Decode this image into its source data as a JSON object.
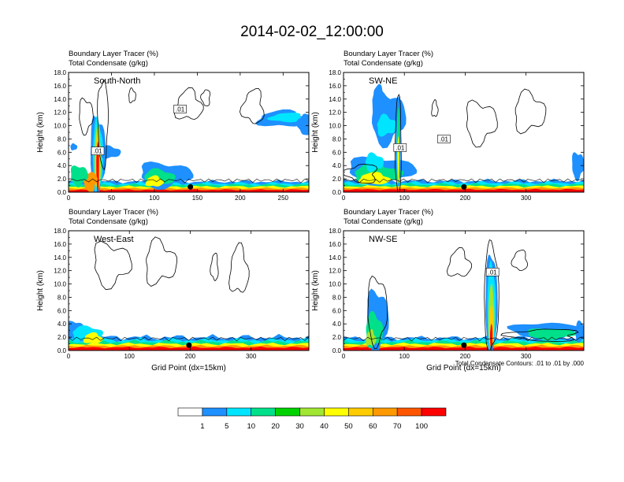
{
  "title": "2014-02-02_12:00:00",
  "colors": {
    "levels": [
      "#ffffff",
      "#1e90ff",
      "#00e5ff",
      "#00e08a",
      "#00d200",
      "#a0e632",
      "#ffff00",
      "#ffcc00",
      "#ff9900",
      "#ff5500",
      "#ff0000"
    ],
    "contour": "#000000"
  },
  "colorbar": {
    "labels": [
      "1",
      "5",
      "10",
      "20",
      "30",
      "40",
      "50",
      "60",
      "70",
      "100"
    ]
  },
  "contour_note": "Total Condensate Contours: .01 to .01 by .000",
  "chart_data": [
    {
      "type": "heatmap",
      "region": "South-North",
      "title_line1": "Boundary Layer Tracer    (%)",
      "title_line2": "Total Condensate    (g/kg)",
      "ylabel": "Height (km)",
      "xlabel": "",
      "xlim": [
        0,
        280
      ],
      "ylim": [
        0,
        18
      ],
      "x_ticks": [
        "0",
        "50",
        "100",
        "150",
        "200",
        "250"
      ],
      "y_ticks": [
        "0.0",
        "2.0",
        "4.0",
        "6.0",
        "8.0",
        "10.0",
        "12.0",
        "14.0",
        "16.0",
        "18.0"
      ],
      "contour_labels": [
        ".01",
        ".01"
      ],
      "surface_marker_x": 142,
      "tracer_percent_at_surface": 100
    },
    {
      "type": "heatmap",
      "region": "SW-NE",
      "title_line1": "Boundary Layer Tracer    (%)",
      "title_line2": "Total Condensate    (g/kg)",
      "ylabel": "Height (km)",
      "xlabel": "",
      "xlim": [
        0,
        395
      ],
      "ylim": [
        0,
        18
      ],
      "x_ticks": [
        "0",
        "100",
        "200",
        "300"
      ],
      "y_ticks": [
        "0.0",
        "2.0",
        "4.0",
        "6.0",
        "8.0",
        "10.0",
        "12.0",
        "14.0",
        "16.0",
        "18.0"
      ],
      "contour_labels": [
        ".01",
        ".01"
      ],
      "surface_marker_x": 198,
      "tracer_percent_at_surface": 100
    },
    {
      "type": "heatmap",
      "region": "West-East",
      "title_line1": "Boundary Layer Tracer    (%)",
      "title_line2": "Total Condensate    (g/kg)",
      "ylabel": "Height (km)",
      "xlabel": "Grid Point (dx=15km)",
      "xlim": [
        0,
        395
      ],
      "ylim": [
        0,
        18
      ],
      "x_ticks": [
        "0",
        "100",
        "200",
        "300"
      ],
      "y_ticks": [
        "0.0",
        "2.0",
        "4.0",
        "6.0",
        "8.0",
        "10.0",
        "12.0",
        "14.0",
        "16.0",
        "18.0"
      ],
      "contour_labels": [],
      "surface_marker_x": 198,
      "tracer_percent_at_surface": 100
    },
    {
      "type": "heatmap",
      "region": "NW-SE",
      "title_line1": "Boundary Layer Tracer    (%)",
      "title_line2": "Total Condensate    (g/kg)",
      "ylabel": "Height (km)",
      "xlabel": "Grid Point (dx=15km)",
      "xlim": [
        0,
        395
      ],
      "ylim": [
        0,
        18
      ],
      "x_ticks": [
        "0",
        "100",
        "200",
        "300"
      ],
      "y_ticks": [
        "0.0",
        "2.0",
        "4.0",
        "6.0",
        "8.0",
        "10.0",
        "12.0",
        "14.0",
        "16.0",
        "18.0"
      ],
      "contour_labels": [
        ".01"
      ],
      "surface_marker_x": 198,
      "tracer_percent_at_surface": 100
    }
  ]
}
